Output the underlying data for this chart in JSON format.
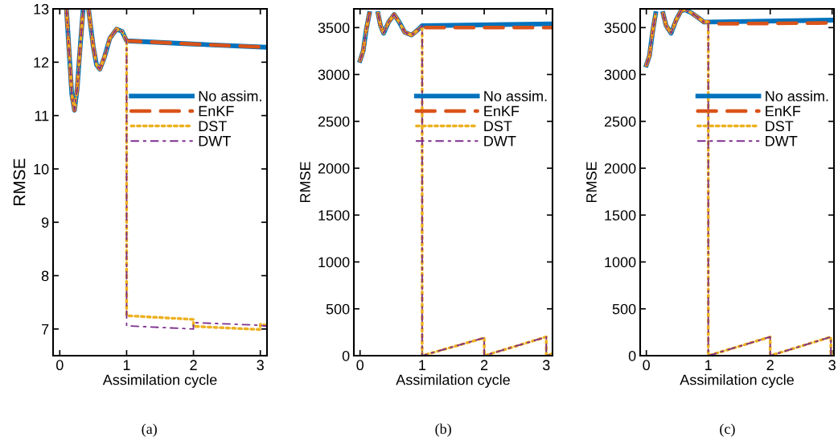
{
  "chart_data": [
    {
      "type": "line",
      "xlabel": "Assimilation cycle",
      "ylabel": "RMSE",
      "xlim": [
        -0.1,
        3.1
      ],
      "ylim": [
        6.5,
        13
      ],
      "xticks": [
        0,
        1,
        2,
        3
      ],
      "yticks": [
        7,
        8,
        9,
        10,
        11,
        12,
        13
      ],
      "grid": false,
      "legend": "right",
      "annotations": [
        "(a)"
      ],
      "series": [
        {
          "name": "No assim.",
          "color": "#0072bd",
          "line_style": "solid",
          "x": [
            0.1,
            0.14,
            0.18,
            0.22,
            0.26,
            0.3,
            0.35,
            0.39,
            0.43,
            0.5,
            0.55,
            0.6,
            0.67,
            0.75,
            0.85,
            0.93,
            1.0,
            2.0,
            3.1
          ],
          "values": [
            13,
            12.2,
            11.4,
            11.1,
            11.5,
            12.2,
            13,
            null,
            13,
            12.3,
            11.95,
            11.87,
            12.1,
            12.45,
            12.62,
            12.58,
            12.4,
            12.34,
            12.28
          ]
        },
        {
          "name": "EnKF",
          "color": "#d95319",
          "line_style": "dashed",
          "x": [
            0.1,
            0.14,
            0.18,
            0.22,
            0.26,
            0.3,
            0.35,
            0.39,
            0.43,
            0.5,
            0.55,
            0.6,
            0.67,
            0.75,
            0.85,
            0.93,
            1.0,
            2.0,
            3.1
          ],
          "values": [
            13,
            12.2,
            11.4,
            11.1,
            11.5,
            12.2,
            13,
            null,
            13,
            12.3,
            11.95,
            11.87,
            12.1,
            12.45,
            12.62,
            12.58,
            12.4,
            12.34,
            12.28
          ]
        },
        {
          "name": "DST",
          "color": "#edb120",
          "line_style": "dotted",
          "x": [
            0.1,
            0.14,
            0.18,
            0.22,
            0.26,
            0.3,
            0.35,
            0.39,
            0.43,
            0.5,
            0.55,
            0.6,
            0.67,
            0.75,
            0.85,
            0.93,
            1.0,
            1.0,
            2.0,
            2.0,
            3.0,
            3.0,
            3.1
          ],
          "values": [
            13,
            12.2,
            11.4,
            11.1,
            11.5,
            12.2,
            13,
            null,
            13,
            12.3,
            11.95,
            11.87,
            12.1,
            12.45,
            12.62,
            12.58,
            12.4,
            7.25,
            7.18,
            7.05,
            6.99,
            7.09,
            7.07
          ]
        },
        {
          "name": "DWT",
          "color": "#7e2f8e",
          "line_style": "dashdot",
          "x": [
            0.1,
            0.14,
            0.18,
            0.22,
            0.26,
            0.3,
            0.35,
            0.39,
            0.43,
            0.5,
            0.55,
            0.6,
            0.67,
            0.75,
            0.85,
            0.93,
            1.0,
            1.0,
            2.0,
            2.0,
            3.0,
            3.1
          ],
          "values": [
            13,
            12.2,
            11.4,
            11.1,
            11.5,
            12.2,
            13,
            null,
            13,
            12.3,
            11.95,
            11.87,
            12.1,
            12.45,
            12.62,
            12.58,
            12.4,
            7.06,
            7.0,
            7.12,
            7.07,
            7.05
          ]
        }
      ]
    },
    {
      "type": "line",
      "xlabel": "Assimilation cycle",
      "ylabel": "RMSE",
      "xlim": [
        -0.1,
        3.1
      ],
      "ylim": [
        0,
        3700
      ],
      "xticks": [
        0,
        1,
        2,
        3
      ],
      "yticks": [
        0,
        500,
        1000,
        1500,
        2000,
        2500,
        3000,
        3500
      ],
      "grid": false,
      "legend": "right",
      "annotations": [
        "(b)"
      ],
      "series": [
        {
          "name": "No assim.",
          "color": "#0072bd",
          "line_style": "solid",
          "x": [
            0,
            0.05,
            0.1,
            0.15,
            0.22,
            0.29,
            0.33,
            0.38,
            0.46,
            0.55,
            0.63,
            0.72,
            0.83,
            0.92,
            1.0,
            3.1
          ],
          "values": [
            3150,
            3250,
            3480,
            3650,
            null,
            3650,
            3520,
            3440,
            3560,
            3640,
            3560,
            3450,
            3420,
            3470,
            3520,
            3540
          ]
        },
        {
          "name": "EnKF",
          "color": "#d95319",
          "line_style": "dashed",
          "x": [
            0,
            0.05,
            0.1,
            0.15,
            0.22,
            0.29,
            0.33,
            0.38,
            0.46,
            0.55,
            0.63,
            0.72,
            0.83,
            0.92,
            1.0,
            1.05,
            3.1
          ],
          "values": [
            3150,
            3250,
            3480,
            3650,
            null,
            3650,
            3520,
            3440,
            3560,
            3640,
            3560,
            3450,
            3420,
            3470,
            3520,
            3500,
            3500
          ]
        },
        {
          "name": "DST",
          "color": "#edb120",
          "line_style": "dotted",
          "x": [
            0,
            0.05,
            0.1,
            0.15,
            0.22,
            0.29,
            0.33,
            0.38,
            0.46,
            0.55,
            0.63,
            0.72,
            0.83,
            0.92,
            1.0,
            1.0,
            2.0,
            2.0,
            3.0,
            3.0,
            3.1
          ],
          "values": [
            3150,
            3250,
            3480,
            3650,
            null,
            3650,
            3520,
            3440,
            3560,
            3640,
            3560,
            3450,
            3420,
            3470,
            3520,
            0,
            190,
            0,
            200,
            0,
            20
          ]
        },
        {
          "name": "DWT",
          "color": "#7e2f8e",
          "line_style": "dashdot",
          "x": [
            0,
            0.05,
            0.1,
            0.15,
            0.22,
            0.29,
            0.33,
            0.38,
            0.46,
            0.55,
            0.63,
            0.72,
            0.83,
            0.92,
            1.0,
            1.0,
            2.0,
            2.0,
            3.0,
            3.0,
            3.1
          ],
          "values": [
            3150,
            3250,
            3480,
            3650,
            null,
            3650,
            3520,
            3440,
            3560,
            3640,
            3560,
            3450,
            3420,
            3470,
            3520,
            0,
            190,
            0,
            200,
            0,
            20
          ]
        }
      ]
    },
    {
      "type": "line",
      "xlabel": "Assimilation cycle",
      "ylabel": "RMSE",
      "xlim": [
        -0.1,
        3.03
      ],
      "ylim": [
        0,
        3700
      ],
      "xticks": [
        0,
        1,
        2,
        3
      ],
      "yticks": [
        0,
        500,
        1000,
        1500,
        2000,
        2500,
        3000,
        3500
      ],
      "grid": false,
      "legend": "right",
      "annotations": [
        "(c)"
      ],
      "series": [
        {
          "name": "No assim.",
          "color": "#0072bd",
          "line_style": "solid",
          "x": [
            0,
            0.05,
            0.1,
            0.15,
            0.21,
            0.27,
            0.32,
            0.4,
            0.48,
            0.56,
            0.62,
            0.72,
            0.85,
            0.93,
            1.0,
            3.03
          ],
          "values": [
            3100,
            3200,
            3450,
            3650,
            null,
            3650,
            3520,
            3440,
            3580,
            3680,
            3690,
            3660,
            3600,
            3560,
            3560,
            3580
          ]
        },
        {
          "name": "EnKF",
          "color": "#d95319",
          "line_style": "dashed",
          "x": [
            0,
            0.05,
            0.1,
            0.15,
            0.21,
            0.27,
            0.32,
            0.4,
            0.48,
            0.56,
            0.62,
            0.72,
            0.85,
            0.93,
            1.0,
            1.05,
            3.03
          ],
          "values": [
            3100,
            3200,
            3450,
            3650,
            null,
            3650,
            3520,
            3440,
            3580,
            3680,
            3690,
            3660,
            3600,
            3560,
            3560,
            3540,
            3550
          ]
        },
        {
          "name": "DST",
          "color": "#edb120",
          "line_style": "dotted",
          "x": [
            0,
            0.05,
            0.1,
            0.15,
            0.21,
            0.27,
            0.32,
            0.4,
            0.48,
            0.56,
            0.62,
            0.72,
            0.85,
            0.93,
            1.0,
            1.0,
            2.0,
            2.0,
            2.98,
            2.98,
            3.03
          ],
          "values": [
            3100,
            3200,
            3450,
            3650,
            null,
            3650,
            3520,
            3440,
            3580,
            3680,
            3690,
            3660,
            3600,
            3560,
            3560,
            0,
            200,
            0,
            200,
            0,
            10
          ]
        },
        {
          "name": "DWT",
          "color": "#7e2f8e",
          "line_style": "dashdot",
          "x": [
            0,
            0.05,
            0.1,
            0.15,
            0.21,
            0.27,
            0.32,
            0.4,
            0.48,
            0.56,
            0.62,
            0.72,
            0.85,
            0.93,
            1.0,
            1.0,
            2.0,
            2.0,
            2.98,
            2.98,
            3.03
          ],
          "values": [
            3100,
            3200,
            3450,
            3650,
            null,
            3650,
            3520,
            3440,
            3580,
            3680,
            3690,
            3660,
            3600,
            3560,
            3560,
            0,
            200,
            0,
            200,
            0,
            10
          ]
        }
      ]
    }
  ]
}
